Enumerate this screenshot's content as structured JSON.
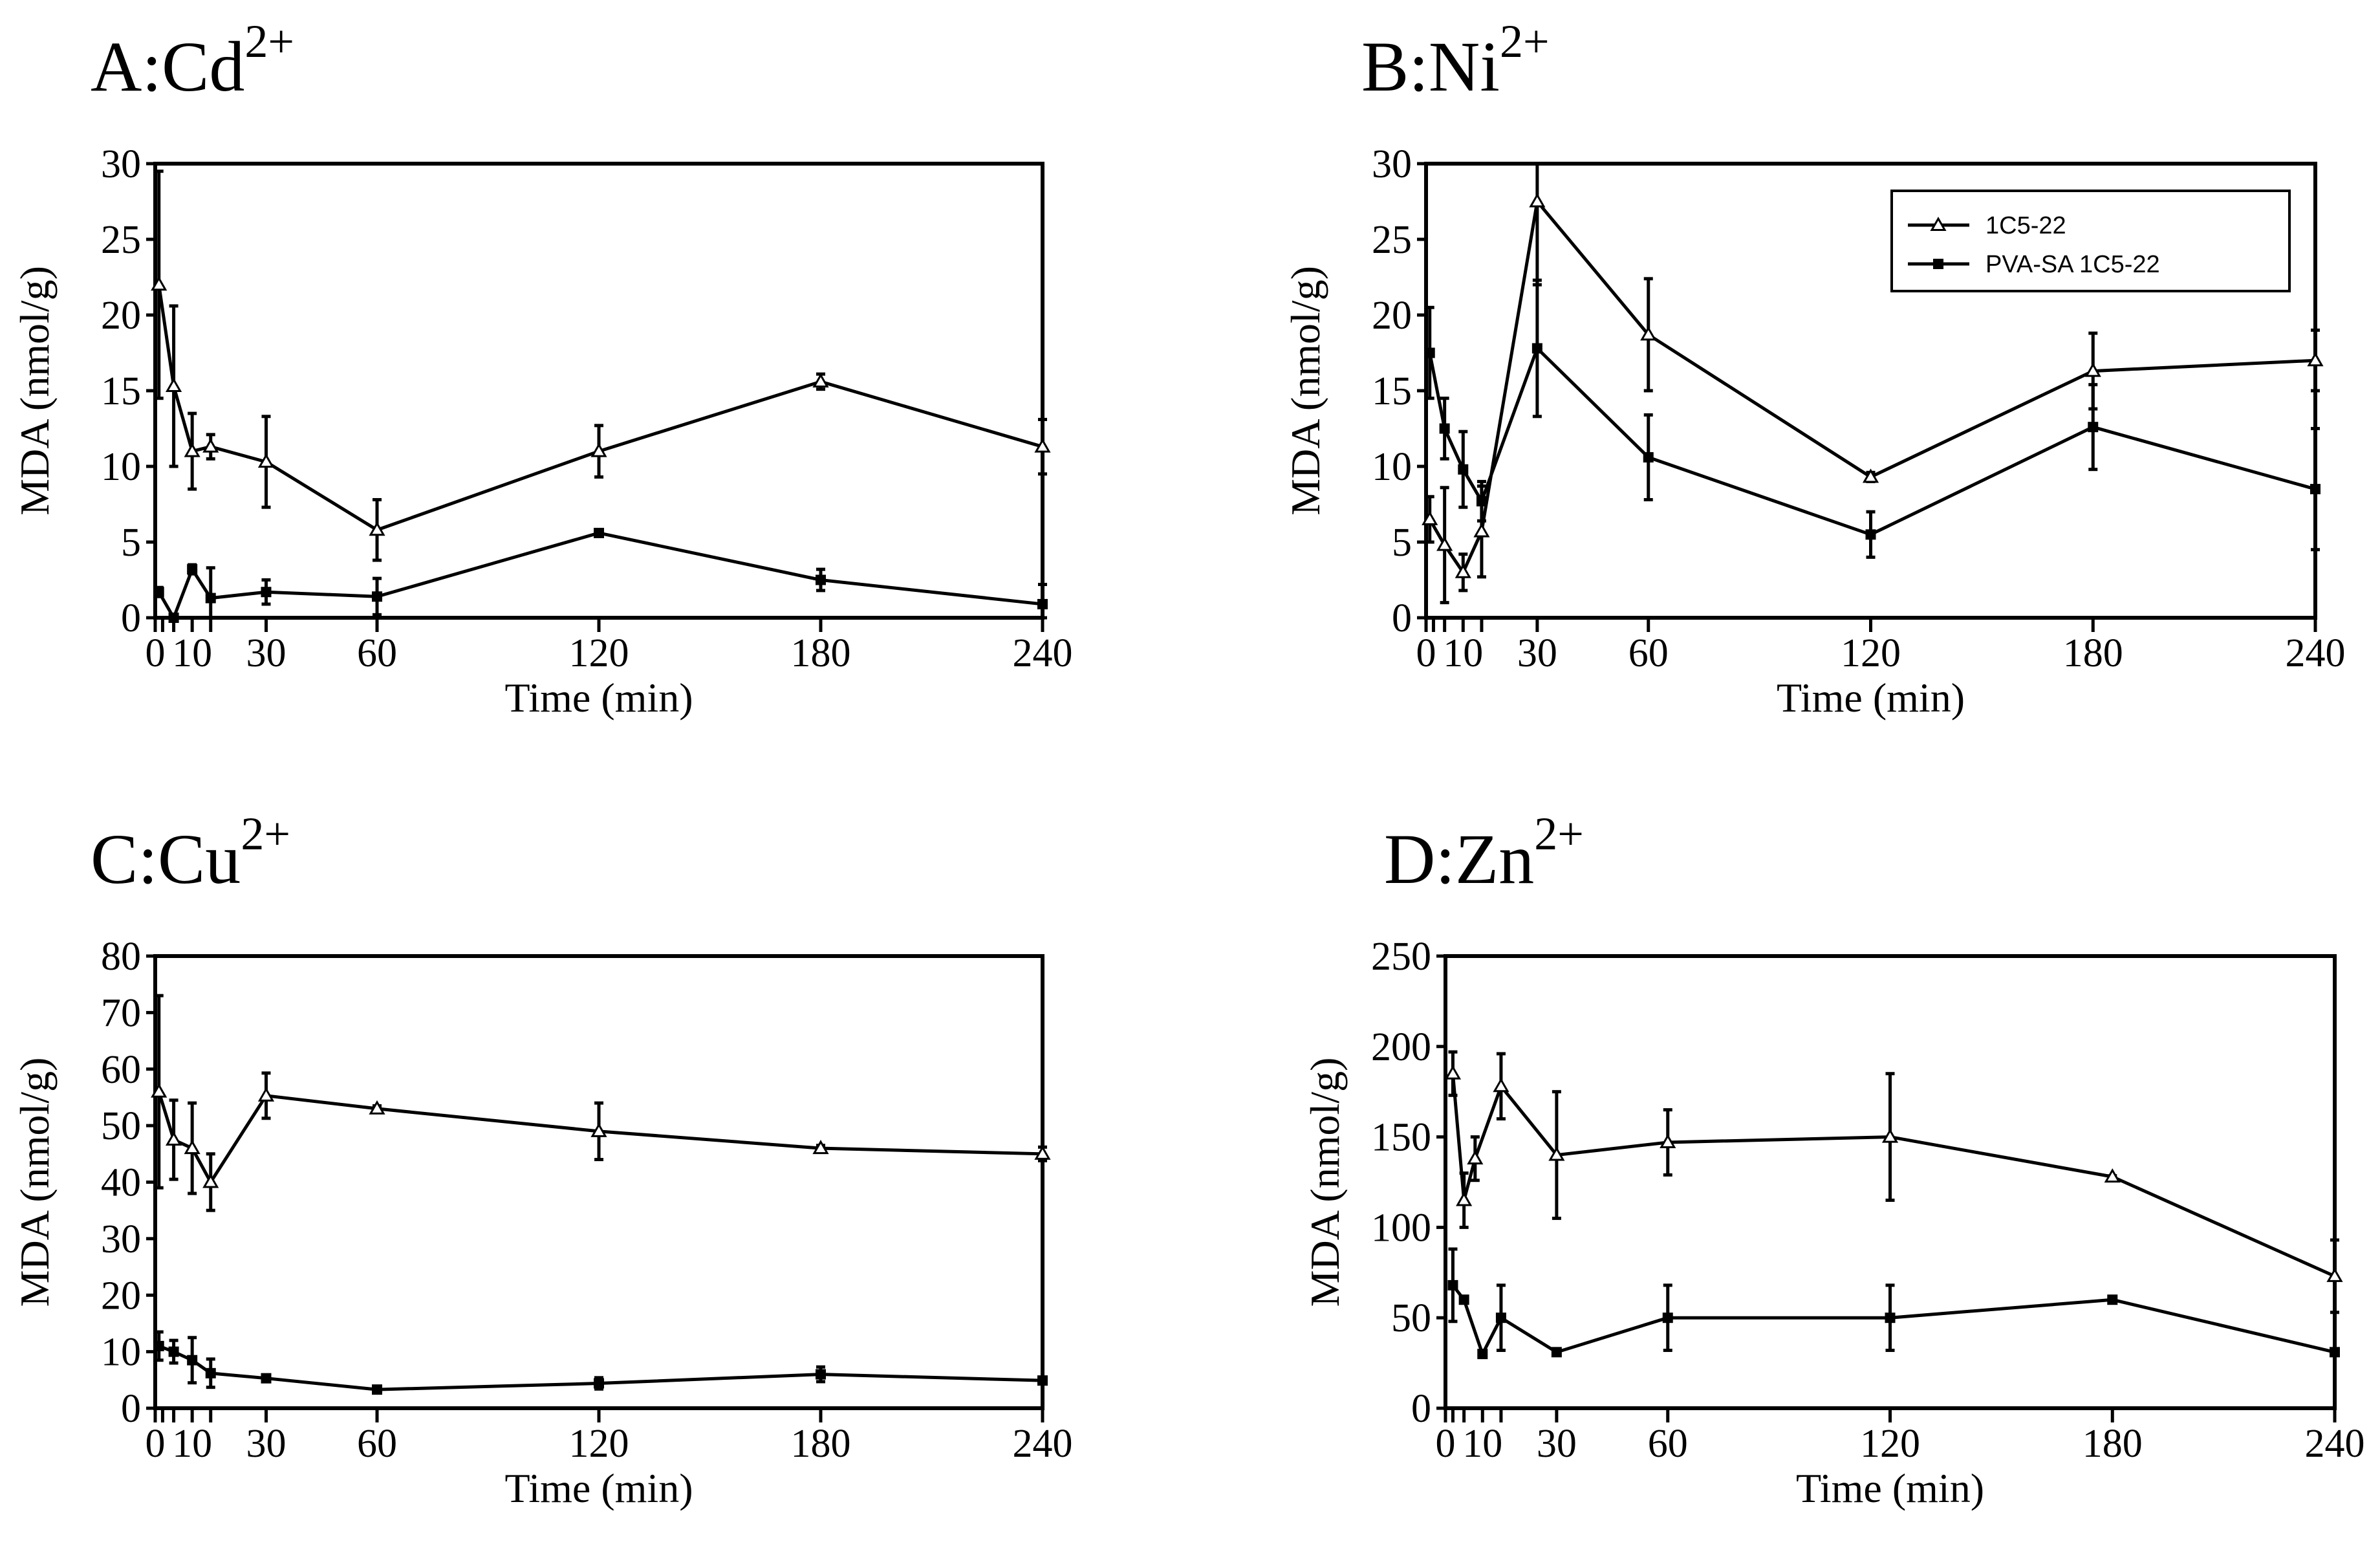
{
  "chart_data": [
    {
      "id": "A",
      "type": "line",
      "title": "A:Cd",
      "title_sup": "2+",
      "xlabel": "Time (min)",
      "ylabel": "MDA (nmol/g)",
      "xlim": [
        0,
        240
      ],
      "ylim": [
        0,
        30
      ],
      "xticks": [
        0,
        10,
        30,
        60,
        120,
        180,
        240
      ],
      "xminor": [
        2,
        5,
        15
      ],
      "yticks": [
        0,
        5,
        10,
        15,
        20,
        25,
        30
      ],
      "legend": false,
      "series": [
        {
          "name": "1C5-22",
          "marker": "triangle",
          "x": [
            1,
            5,
            10,
            15,
            30,
            60,
            120,
            180,
            240
          ],
          "y": [
            22,
            15.3,
            11,
            11.3,
            10.3,
            5.8,
            11,
            15.6,
            11.3
          ],
          "err": [
            7.5,
            5.3,
            2.5,
            0.8,
            3,
            2,
            1.7,
            0.5,
            1.8
          ]
        },
        {
          "name": "PVA-SA 1C5-22",
          "marker": "square",
          "x": [
            1,
            5,
            10,
            15,
            30,
            60,
            120,
            180,
            240
          ],
          "y": [
            1.7,
            0,
            3.2,
            1.3,
            1.7,
            1.4,
            5.6,
            2.5,
            0.9
          ],
          "err": [
            0.3,
            0,
            0.3,
            2,
            0.8,
            1.2,
            0.2,
            0.7,
            1.3
          ]
        }
      ]
    },
    {
      "id": "B",
      "type": "line",
      "title": "B:Ni",
      "title_sup": "2+",
      "xlabel": "Time (min)",
      "ylabel": "MDA (nmol/g)",
      "xlim": [
        0,
        240
      ],
      "ylim": [
        0,
        30
      ],
      "xticks": [
        0,
        10,
        30,
        60,
        120,
        180,
        240
      ],
      "xminor": [
        2,
        5,
        15
      ],
      "yticks": [
        0,
        5,
        10,
        15,
        20,
        25,
        30
      ],
      "legend": true,
      "legend_entries": [
        {
          "label": "1C5-22",
          "marker": "triangle"
        },
        {
          "label": "PVA-SA 1C5-22",
          "marker": "square"
        }
      ],
      "series": [
        {
          "name": "1C5-22",
          "marker": "triangle",
          "x": [
            1,
            5,
            10,
            15,
            30,
            60,
            120,
            180,
            240
          ],
          "y": [
            6.5,
            4.8,
            3,
            5.7,
            27.5,
            18.7,
            9.3,
            16.3,
            17
          ],
          "err": [
            1.5,
            3.8,
            1.2,
            3,
            5.5,
            3.7,
            0.3,
            2.5,
            2
          ]
        },
        {
          "name": "PVA-SA 1C5-22",
          "marker": "square",
          "x": [
            1,
            5,
            10,
            15,
            30,
            60,
            120,
            180,
            240
          ],
          "y": [
            17.5,
            12.5,
            9.8,
            7.7,
            17.8,
            10.6,
            5.5,
            12.6,
            8.5
          ],
          "err": [
            3,
            2,
            2.5,
            1.3,
            4.5,
            2.8,
            1.5,
            2.8,
            4
          ]
        }
      ]
    },
    {
      "id": "C",
      "type": "line",
      "title": "C:Cu",
      "title_sup": "2+",
      "xlabel": "Time (min)",
      "ylabel": "MDA (nmol/g)",
      "xlim": [
        0,
        240
      ],
      "ylim": [
        0,
        80
      ],
      "xticks": [
        0,
        10,
        30,
        60,
        120,
        180,
        240
      ],
      "xminor": [
        2,
        5,
        15
      ],
      "yticks": [
        0,
        10,
        20,
        30,
        40,
        50,
        60,
        70,
        80
      ],
      "legend": false,
      "series": [
        {
          "name": "1C5-22",
          "marker": "triangle",
          "x": [
            1,
            5,
            10,
            15,
            30,
            60,
            120,
            180,
            240
          ],
          "y": [
            56,
            47.5,
            46,
            40,
            55.3,
            53,
            49,
            46,
            45
          ],
          "err": [
            17,
            7,
            8,
            5,
            4,
            0.5,
            5,
            0.5,
            1.2
          ]
        },
        {
          "name": "PVA-SA 1C5-22",
          "marker": "square",
          "x": [
            1,
            5,
            10,
            15,
            30,
            60,
            120,
            180,
            240
          ],
          "y": [
            11,
            10,
            8.5,
            6.2,
            5.3,
            3.3,
            4.4,
            6,
            4.9
          ],
          "err": [
            2.5,
            2,
            4,
            2.5,
            0.5,
            0.5,
            1,
            1.3,
            0.6
          ]
        }
      ]
    },
    {
      "id": "D",
      "type": "line",
      "title": "D:Zn",
      "title_sup": "2+",
      "xlabel": "Time (min)",
      "ylabel": "MDA (nmol/g)",
      "xlim": [
        0,
        240
      ],
      "ylim": [
        0,
        250
      ],
      "xticks": [
        0,
        10,
        30,
        60,
        120,
        180,
        240
      ],
      "xminor": [
        2,
        5,
        15
      ],
      "yticks": [
        0,
        50,
        100,
        150,
        200,
        250
      ],
      "legend": false,
      "series": [
        {
          "name": "1C5-22",
          "marker": "triangle",
          "x": [
            2,
            5,
            8,
            15,
            30,
            60,
            120,
            180,
            240
          ],
          "y": [
            185,
            115,
            138,
            178,
            140,
            147,
            150,
            128,
            73
          ],
          "err": [
            12,
            15,
            12,
            18,
            35,
            18,
            35,
            0.5,
            20
          ]
        },
        {
          "name": "PVA-SA 1C5-22",
          "marker": "square",
          "x": [
            2,
            5,
            10,
            15,
            30,
            60,
            120,
            180,
            240
          ],
          "y": [
            68,
            60,
            30,
            50,
            31,
            50,
            50,
            60,
            31
          ],
          "err": [
            20,
            0.5,
            0.5,
            18,
            0.5,
            18,
            18,
            0.5,
            0.5
          ]
        }
      ]
    }
  ]
}
